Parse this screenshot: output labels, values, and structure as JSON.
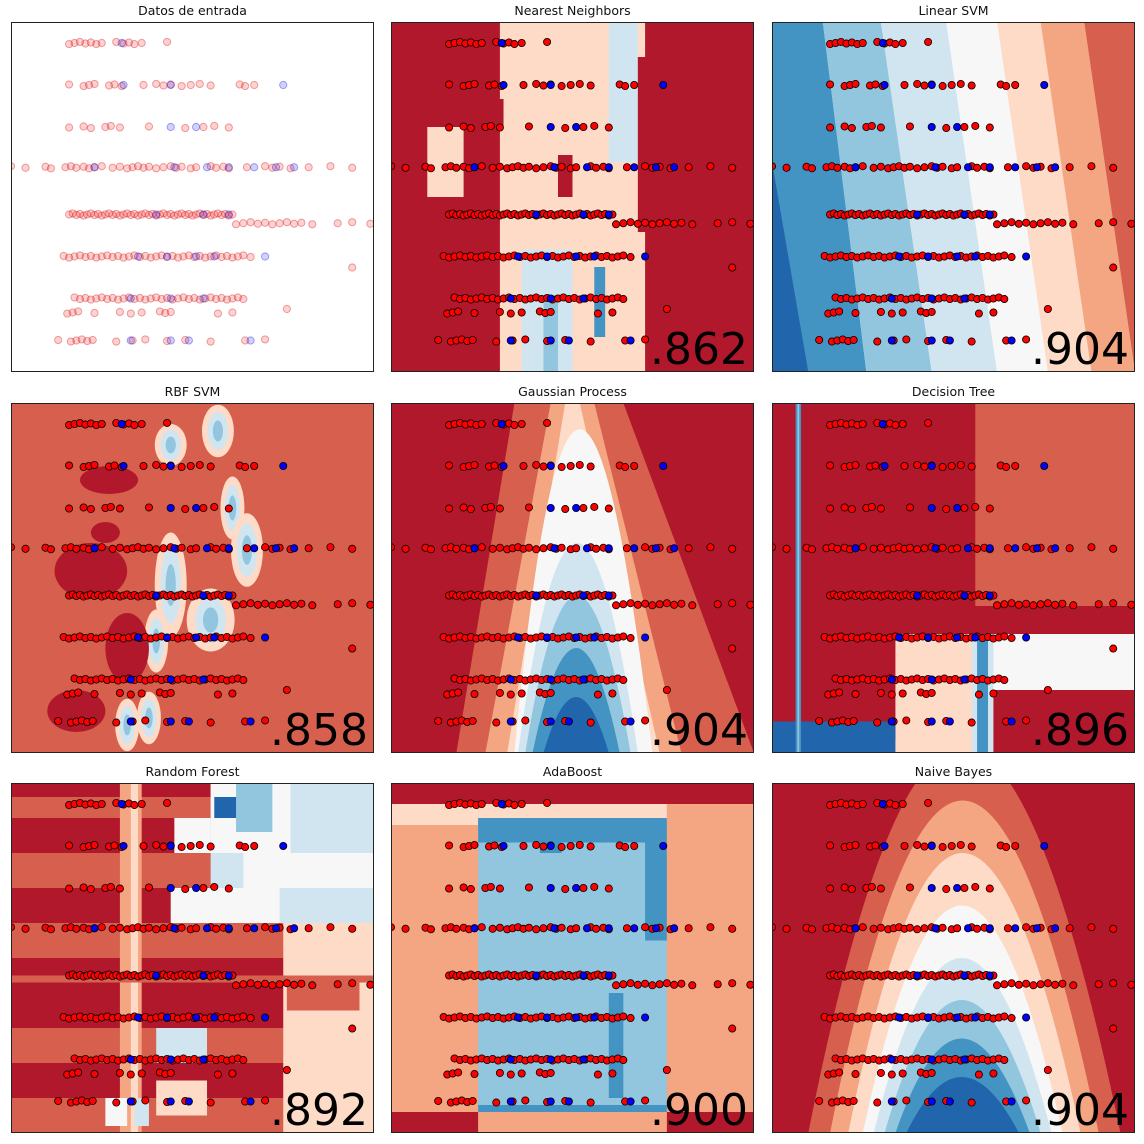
{
  "colors": {
    "red_dark": "#b2182b",
    "red": "#d6604d",
    "red_mid": "#f4a582",
    "red_light": "#fddbc7",
    "white": "#f7f7f7",
    "blue_light": "#d1e5f0",
    "blue_mid": "#92c5de",
    "blue": "#4393c3",
    "blue_dark": "#2166ac",
    "point_red": "#ff0000",
    "point_blue": "#0000ff"
  },
  "chart_data": [
    {
      "type": "scatter",
      "title": "Datos de entrada",
      "score": "",
      "xlim": [
        0,
        100
      ],
      "ylim": [
        0,
        100
      ],
      "grid": false,
      "background": "input",
      "series": [
        {
          "points": "train",
          "style": "filled"
        },
        {
          "points": "test",
          "style": "faded"
        }
      ]
    },
    {
      "type": "scatter",
      "title": "Nearest Neighbors",
      "score": ".862",
      "background": "knn",
      "xlim": [
        0,
        100
      ],
      "ylim": [
        0,
        100
      ],
      "grid": false
    },
    {
      "type": "scatter",
      "title": "Linear SVM",
      "score": ".904",
      "background": "linear",
      "xlim": [
        0,
        100
      ],
      "ylim": [
        0,
        100
      ],
      "grid": false
    },
    {
      "type": "scatter",
      "title": "RBF SVM",
      "score": ".858",
      "background": "rbf",
      "xlim": [
        0,
        100
      ],
      "ylim": [
        0,
        100
      ],
      "grid": false
    },
    {
      "type": "scatter",
      "title": "Gaussian Process",
      "score": ".904",
      "background": "parabola",
      "xlim": [
        0,
        100
      ],
      "ylim": [
        0,
        100
      ],
      "grid": false
    },
    {
      "type": "scatter",
      "title": "Decision Tree",
      "score": ".896",
      "background": "tree",
      "xlim": [
        0,
        100
      ],
      "ylim": [
        0,
        100
      ],
      "grid": false
    },
    {
      "type": "scatter",
      "title": "Random Forest",
      "score": ".892",
      "background": "forest",
      "xlim": [
        0,
        100
      ],
      "ylim": [
        0,
        100
      ],
      "grid": false
    },
    {
      "type": "scatter",
      "title": "AdaBoost",
      "score": ".900",
      "background": "ada",
      "xlim": [
        0,
        100
      ],
      "ylim": [
        0,
        100
      ],
      "grid": false
    },
    {
      "type": "scatter",
      "title": "Naive Bayes",
      "score": ".904",
      "background": "parabola_wide",
      "xlim": [
        0,
        100
      ],
      "ylim": [
        0,
        100
      ],
      "grid": false
    }
  ],
  "points": {
    "rows": [
      {
        "y": 94,
        "x": [
          16,
          17.5,
          19,
          20.5,
          22,
          23.5,
          25,
          29,
          31,
          32.5,
          34,
          36,
          43
        ],
        "blue": [
          30.5
        ]
      },
      {
        "y": 82,
        "x": [
          16,
          20,
          21.5,
          23,
          27,
          28.5,
          30.5,
          36.5,
          40,
          42,
          44,
          47,
          49.5,
          52,
          55,
          63,
          64.5,
          67
        ],
        "blue": [
          31,
          44,
          75
        ]
      },
      {
        "y": 70,
        "x": [
          16,
          20,
          22,
          26,
          27.5,
          30,
          38,
          48,
          53,
          56,
          60
        ],
        "blue": [
          44,
          51
        ]
      },
      {
        "y": 58.5,
        "x": [
          0,
          4,
          9.5,
          11,
          15,
          16.5,
          18,
          20,
          21.5,
          23,
          25,
          28,
          30,
          32,
          33.5,
          35,
          36.5,
          38,
          40,
          42,
          44,
          45.5,
          47,
          49.5,
          51,
          55,
          56.5,
          58.5,
          60,
          65,
          70,
          72,
          74,
          77,
          82,
          88,
          94
        ],
        "blue": [
          23,
          45,
          54,
          60,
          67,
          73,
          78
        ]
      },
      {
        "y": 45,
        "x": [
          16,
          17,
          18,
          19,
          20,
          21,
          22,
          23,
          24,
          25,
          26,
          27,
          28,
          29,
          30,
          31,
          32,
          33,
          34,
          35,
          36,
          37,
          38,
          39,
          40,
          41,
          42,
          43,
          44,
          45,
          46,
          47,
          48,
          49,
          50,
          51,
          52,
          53,
          54,
          55,
          56,
          57,
          58,
          59,
          60,
          61
        ],
        "blue": [
          40,
          53,
          60
        ]
      },
      {
        "y": 42.5,
        "x": [
          62,
          64,
          66,
          68,
          70,
          72,
          74,
          76,
          78,
          80,
          83,
          90,
          94,
          99
        ],
        "blue": []
      },
      {
        "y": 33,
        "x": [
          14.5,
          16,
          17.5,
          19,
          20.5,
          22,
          23.5,
          25,
          26.5,
          28,
          29.5,
          31,
          32.5,
          34,
          35.5,
          37,
          38.5,
          40,
          41.5,
          43,
          44.5,
          46,
          47.5,
          49,
          50.5,
          52,
          53.5,
          55,
          56.5,
          58,
          59.5,
          61,
          62.5,
          64,
          66
        ],
        "blue": [
          35,
          43,
          51,
          56,
          70
        ]
      },
      {
        "y": 30,
        "x": [
          94
        ],
        "blue": []
      },
      {
        "y": 21,
        "x": [
          17.5,
          19,
          20.5,
          22,
          23.5,
          25,
          26.5,
          28,
          29.5,
          31,
          32.5,
          34,
          35.5,
          37,
          38.5,
          40,
          41.5,
          43,
          44.5,
          46,
          47.5,
          49,
          50.5,
          52,
          53.5,
          55,
          56.5,
          58,
          59.5,
          61,
          62.5,
          64
        ],
        "blue": [
          33,
          44,
          53
        ]
      },
      {
        "y": 18,
        "x": [
          76
        ],
        "blue": []
      },
      {
        "y": 17,
        "x": [
          15.5,
          17,
          18.5,
          23,
          30,
          33,
          36,
          41,
          42.5,
          44,
          57,
          61
        ],
        "blue": []
      },
      {
        "y": 9,
        "x": [
          13,
          16.5,
          18,
          19.5,
          21,
          22.5,
          29,
          33.5,
          37,
          43,
          48,
          55,
          64.5,
          70
        ],
        "blue": [
          33,
          44,
          49,
          66
        ]
      }
    ]
  }
}
